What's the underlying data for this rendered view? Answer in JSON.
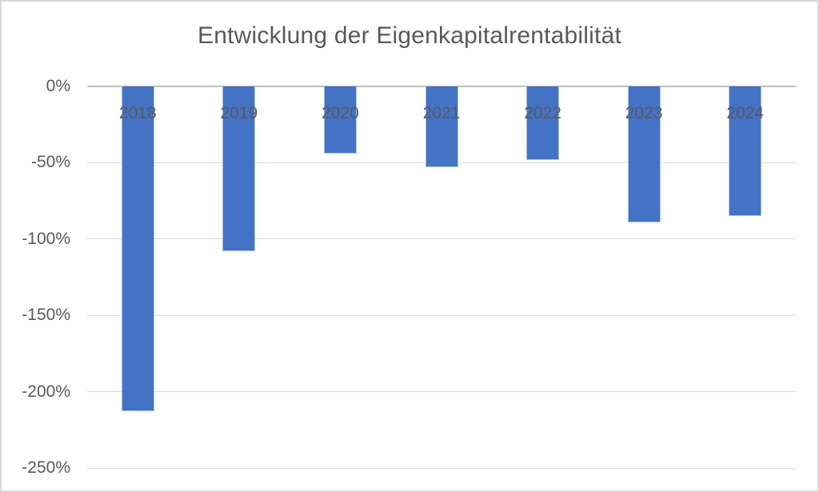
{
  "chart_data": {
    "type": "bar",
    "title": "Entwicklung der Eigenkapitalrentabilität",
    "xlabel": "",
    "ylabel": "",
    "categories": [
      "2018",
      "2019",
      "2020",
      "2021",
      "2022",
      "2023",
      "2024"
    ],
    "values": [
      -213,
      -108,
      -44,
      -53,
      -48,
      -89,
      -85
    ],
    "value_unit": "%",
    "ylim": [
      -250,
      0
    ],
    "yticks": [
      0,
      -50,
      -100,
      -150,
      -200,
      -250
    ],
    "ytick_labels": [
      "0%",
      "-50%",
      "-100%",
      "-150%",
      "-200%",
      "-250%"
    ],
    "grid": true,
    "legend": "none",
    "category_label_position": "below-zero-axis-over-bars",
    "colors": {
      "bar": "#4472c4",
      "bar_border": "#a9c4ea",
      "gridline": "#d9d9d9",
      "axis_line": "#bfbfbf",
      "text": "#595959",
      "chart_border": "#d9d9d9",
      "background": "#ffffff"
    }
  }
}
